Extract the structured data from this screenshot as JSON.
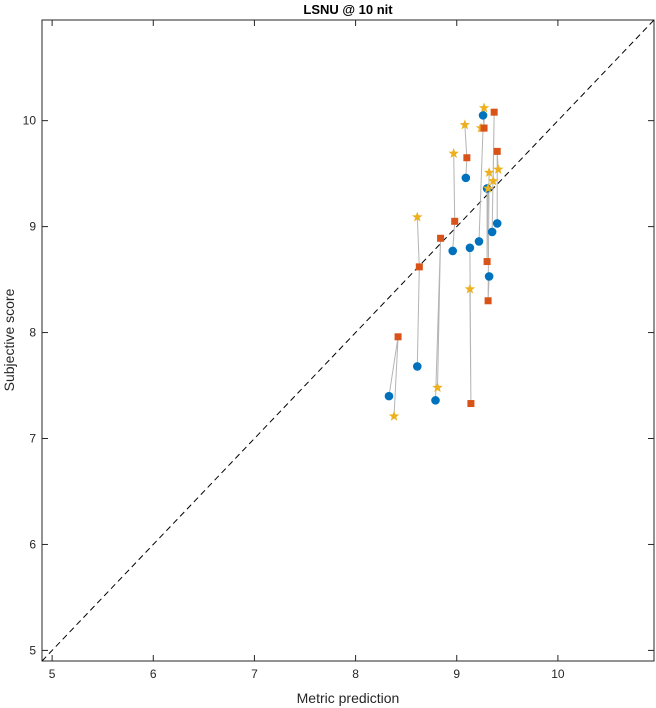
{
  "chart_data": {
    "type": "scatter",
    "title": "LSNU @ 10 nit",
    "xlabel": "Metric prediction",
    "ylabel": "Subjective score",
    "xlim": [
      4.9,
      10.95
    ],
    "ylim": [
      4.9,
      10.95
    ],
    "xticks": [
      "5",
      "6",
      "7",
      "8",
      "9",
      "10"
    ],
    "yticks": [
      "5",
      "6",
      "7",
      "8",
      "9",
      "10"
    ],
    "identity_line": true,
    "grid": false,
    "colors": {
      "circle": "#0072BD",
      "square": "#D95319",
      "star": "#EDB120",
      "connector": "#B4B4B4",
      "axis": "#262626",
      "diagonal": "#000000"
    },
    "groups": [
      [
        [
          8.33,
          7.4
        ],
        [
          8.42,
          7.96
        ],
        [
          8.38,
          7.21
        ]
      ],
      [
        [
          8.61,
          7.68
        ],
        [
          8.63,
          8.62
        ],
        [
          8.61,
          9.09
        ]
      ],
      [
        [
          8.79,
          7.36
        ],
        [
          8.84,
          8.89
        ],
        [
          8.81,
          7.48
        ]
      ],
      [
        [
          8.96,
          8.77
        ],
        [
          8.98,
          9.05
        ],
        [
          8.97,
          9.69
        ]
      ],
      [
        [
          9.09,
          9.46
        ],
        [
          9.1,
          9.65
        ],
        [
          9.08,
          9.96
        ]
      ],
      [
        [
          9.13,
          8.8
        ],
        [
          9.14,
          7.33
        ],
        [
          9.13,
          8.41
        ]
      ],
      [
        [
          9.22,
          8.86
        ],
        [
          9.26,
          9.93
        ],
        [
          9.24,
          9.93
        ]
      ],
      [
        [
          9.26,
          10.05
        ],
        [
          9.27,
          9.93
        ],
        [
          9.27,
          10.12
        ]
      ],
      [
        [
          9.3,
          9.36
        ],
        [
          9.3,
          8.67
        ],
        [
          9.31,
          9.36
        ]
      ],
      [
        [
          9.32,
          8.53
        ],
        [
          9.31,
          8.3
        ],
        [
          9.32,
          9.51
        ]
      ],
      [
        [
          9.35,
          8.95
        ],
        [
          9.37,
          10.08
        ],
        [
          9.36,
          9.43
        ]
      ],
      [
        [
          9.4,
          9.03
        ],
        [
          9.4,
          9.71
        ],
        [
          9.41,
          9.54
        ]
      ]
    ]
  }
}
